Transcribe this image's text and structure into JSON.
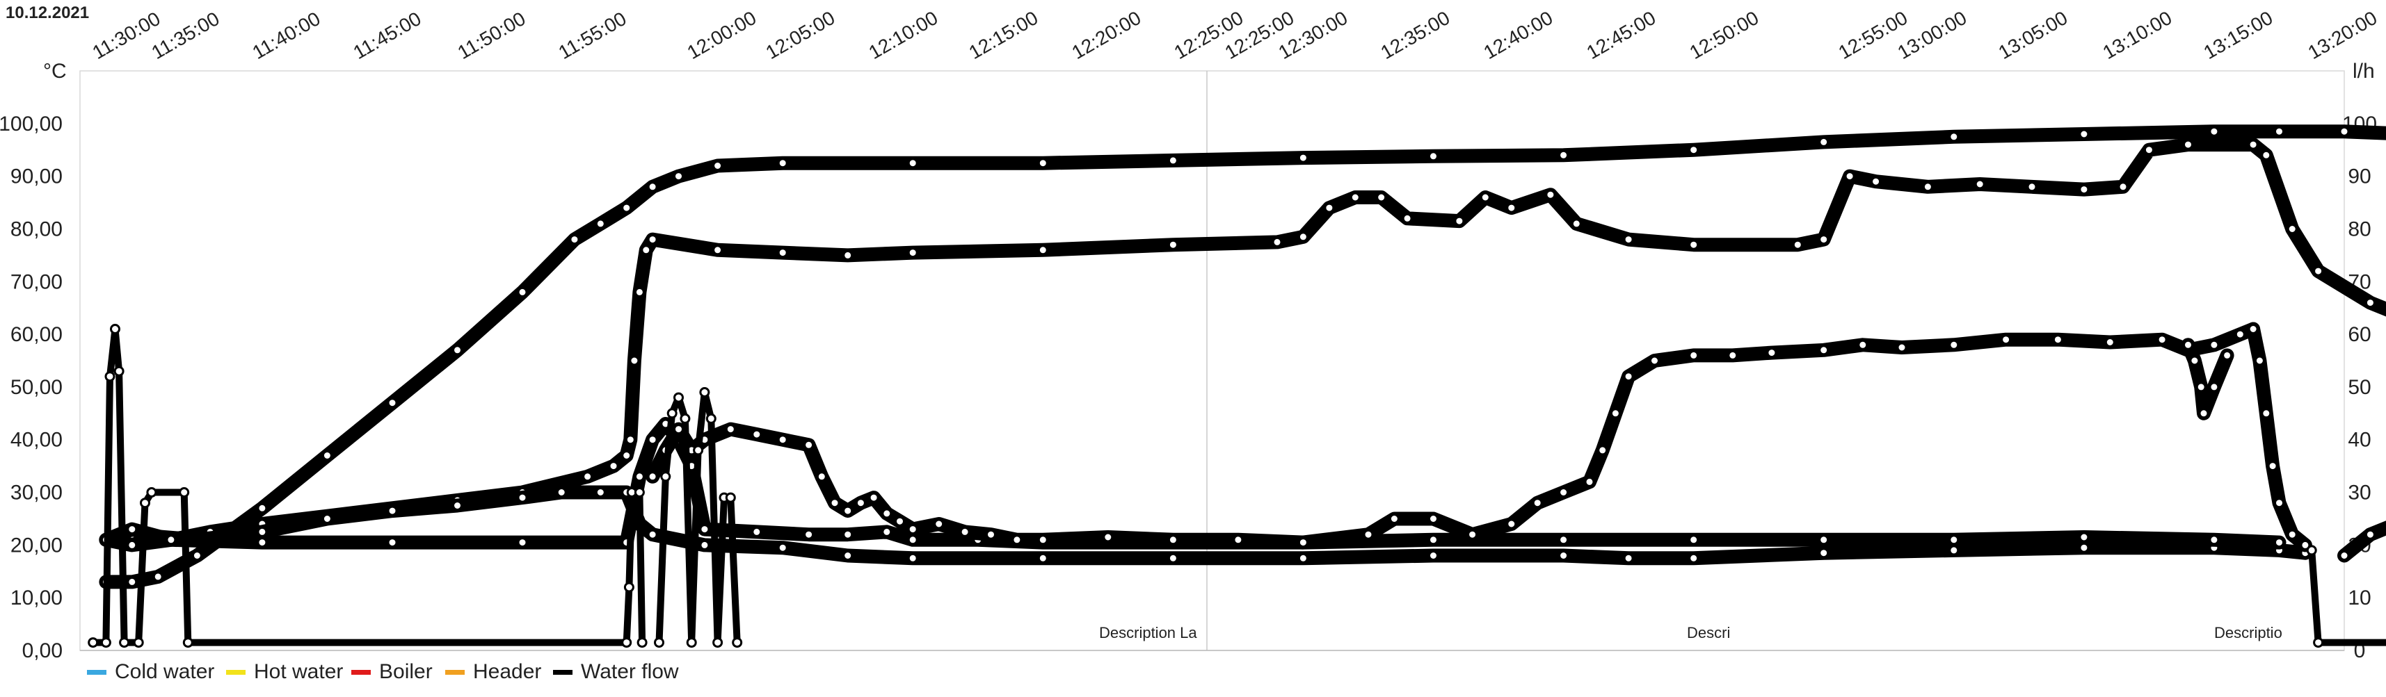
{
  "date_label": "10.12.2021",
  "chart_data": {
    "type": "line",
    "title": "",
    "left_unit": "°C",
    "right_unit": "l/h",
    "ylim": [
      0,
      110
    ],
    "y2lim": [
      0,
      110
    ],
    "x_ticks": [
      "11:30:00",
      "11:35:00",
      "11:40:00",
      "11:45:00",
      "11:50:00",
      "11:55:00",
      "12:00:00",
      "12:05:00",
      "12:10:00",
      "12:15:00",
      "12:20:00",
      "12:25:00",
      "12:25:00",
      "12:30:00",
      "12:35:00",
      "12:40:00",
      "12:45:00",
      "12:50:00",
      "12:55:00",
      "13:00:00",
      "13:05:00",
      "13:10:00",
      "13:15:00",
      "13:20:00"
    ],
    "y_ticks_left": [
      "0,00",
      "10,00",
      "20,00",
      "30,00",
      "40,00",
      "50,00",
      "60,00",
      "70,00",
      "80,00",
      "90,00",
      "100,00"
    ],
    "y_ticks_right": [
      "0",
      "10",
      "20",
      "30",
      "40",
      "50",
      "60",
      "70",
      "80",
      "90",
      "100"
    ],
    "x_domain_minutes": [
      26,
      200
    ],
    "annotations": [
      "Description La",
      "Descri",
      "Descriptio"
    ],
    "legend": [
      {
        "name": "Cold water",
        "color": "#3aa8e0"
      },
      {
        "name": "Hot water",
        "color": "#f2e21b"
      },
      {
        "name": "Boiler",
        "color": "#e01b1b"
      },
      {
        "name": "Header",
        "color": "#f0a020"
      },
      {
        "name": "Water flow",
        "color": "#000000"
      }
    ],
    "series": [
      {
        "key": "header_main",
        "color": "#000000",
        "points": [
          [
            28,
            21
          ],
          [
            30,
            20
          ],
          [
            33,
            21
          ],
          [
            36,
            22.5
          ],
          [
            40,
            24
          ],
          [
            45,
            25.5
          ],
          [
            50,
            27
          ],
          [
            55,
            28.5
          ],
          [
            60,
            30
          ],
          [
            65,
            33
          ],
          [
            67,
            35
          ],
          [
            68,
            37
          ],
          [
            68.3,
            40
          ],
          [
            68.6,
            55
          ],
          [
            69,
            68
          ],
          [
            69.5,
            76
          ],
          [
            70,
            78
          ],
          [
            75,
            76
          ],
          [
            80,
            75.5
          ],
          [
            85,
            75
          ],
          [
            90,
            75.5
          ],
          [
            100,
            76
          ],
          [
            110,
            77
          ],
          [
            118,
            77.5
          ],
          [
            120,
            78.5
          ],
          [
            122,
            84
          ],
          [
            124,
            86
          ],
          [
            126,
            86
          ],
          [
            128,
            82
          ],
          [
            132,
            81.5
          ],
          [
            134,
            86
          ],
          [
            136,
            84
          ],
          [
            139,
            86.5
          ],
          [
            141,
            81
          ],
          [
            145,
            78
          ],
          [
            150,
            77
          ],
          [
            158,
            77
          ],
          [
            160,
            78
          ],
          [
            162,
            90
          ],
          [
            164,
            89
          ],
          [
            168,
            88
          ],
          [
            172,
            88.5
          ],
          [
            176,
            88
          ],
          [
            180,
            87.5
          ],
          [
            183,
            88
          ],
          [
            185,
            95
          ],
          [
            188,
            96
          ],
          [
            193,
            96
          ],
          [
            194,
            94
          ],
          [
            196,
            80
          ],
          [
            198,
            72
          ],
          [
            202,
            66
          ],
          [
            206,
            62
          ],
          [
            208,
            60
          ]
        ]
      },
      {
        "key": "water_flow_main",
        "color": "#000000",
        "points": [
          [
            28,
            13
          ],
          [
            30,
            13
          ],
          [
            32,
            14
          ],
          [
            35,
            18
          ],
          [
            40,
            27
          ],
          [
            45,
            37
          ],
          [
            50,
            47
          ],
          [
            55,
            57
          ],
          [
            60,
            68
          ],
          [
            64,
            78
          ],
          [
            66,
            81
          ],
          [
            68,
            84
          ],
          [
            70,
            88
          ],
          [
            72,
            90
          ],
          [
            75,
            92
          ],
          [
            80,
            92.5
          ],
          [
            90,
            92.5
          ],
          [
            100,
            92.5
          ],
          [
            110,
            93
          ],
          [
            120,
            93.5
          ],
          [
            130,
            93.8
          ],
          [
            140,
            94
          ],
          [
            150,
            95
          ],
          [
            160,
            96.5
          ],
          [
            170,
            97.5
          ],
          [
            180,
            98
          ],
          [
            190,
            98.5
          ],
          [
            195,
            98.5
          ],
          [
            200,
            98.5
          ],
          [
            205,
            98
          ],
          [
            208,
            97.5
          ]
        ]
      },
      {
        "key": "cold_water",
        "color": "#000000",
        "points": [
          [
            28,
            21
          ],
          [
            30,
            22
          ],
          [
            35,
            21
          ],
          [
            40,
            22.5
          ],
          [
            45,
            25
          ],
          [
            50,
            26.5
          ],
          [
            55,
            27.5
          ],
          [
            60,
            29
          ],
          [
            63,
            30
          ],
          [
            66,
            30
          ],
          [
            68,
            30
          ],
          [
            68.5,
            27
          ],
          [
            69,
            24
          ],
          [
            70,
            22
          ],
          [
            74,
            20
          ],
          [
            80,
            19.5
          ],
          [
            85,
            18
          ],
          [
            90,
            17.5
          ],
          [
            100,
            17.5
          ],
          [
            110,
            17.5
          ],
          [
            120,
            17.5
          ],
          [
            130,
            18
          ],
          [
            140,
            18
          ],
          [
            145,
            17.5
          ],
          [
            150,
            17.5
          ],
          [
            160,
            18.5
          ],
          [
            170,
            19
          ],
          [
            180,
            19.5
          ],
          [
            190,
            19.5
          ],
          [
            195,
            19
          ],
          [
            197,
            18.5
          ]
        ]
      },
      {
        "key": "boiler",
        "color": "#000000",
        "points": [
          [
            28,
            21
          ],
          [
            30,
            23
          ],
          [
            33,
            21
          ],
          [
            40,
            20.5
          ],
          [
            50,
            20.5
          ],
          [
            60,
            20.5
          ],
          [
            68,
            20.5
          ],
          [
            69,
            33
          ],
          [
            70,
            40
          ],
          [
            71,
            43
          ],
          [
            72,
            40
          ],
          [
            73,
            35
          ],
          [
            74,
            23
          ],
          [
            78,
            22.5
          ],
          [
            82,
            22
          ],
          [
            85,
            22
          ],
          [
            88,
            22.5
          ],
          [
            90,
            21
          ],
          [
            95,
            21
          ],
          [
            100,
            20.5
          ],
          [
            110,
            20.5
          ],
          [
            120,
            20.5
          ],
          [
            130,
            21
          ],
          [
            140,
            21
          ],
          [
            150,
            21
          ],
          [
            160,
            21
          ],
          [
            170,
            21
          ],
          [
            180,
            21.5
          ],
          [
            190,
            21
          ],
          [
            195,
            20.5
          ]
        ]
      },
      {
        "key": "hot_water",
        "color": "#000000",
        "points": [
          [
            70,
            33
          ],
          [
            71,
            38
          ],
          [
            72,
            42
          ],
          [
            73,
            38
          ],
          [
            74,
            40
          ],
          [
            76,
            42
          ],
          [
            78,
            41
          ],
          [
            80,
            40
          ],
          [
            82,
            39
          ],
          [
            83,
            33
          ],
          [
            84,
            28
          ],
          [
            85,
            26.5
          ],
          [
            86,
            28
          ],
          [
            87,
            29
          ],
          [
            88,
            26
          ],
          [
            89,
            24.5
          ],
          [
            90,
            23
          ],
          [
            92,
            24
          ],
          [
            94,
            22.5
          ],
          [
            96,
            22
          ],
          [
            98,
            21
          ],
          [
            100,
            21
          ],
          [
            105,
            21.5
          ],
          [
            110,
            21
          ],
          [
            115,
            21
          ],
          [
            120,
            20.5
          ],
          [
            125,
            22
          ],
          [
            127,
            25
          ],
          [
            130,
            25
          ],
          [
            133,
            22
          ],
          [
            136,
            24
          ],
          [
            138,
            28
          ],
          [
            140,
            30
          ],
          [
            142,
            32
          ],
          [
            143,
            38
          ],
          [
            144,
            45
          ],
          [
            145,
            52
          ],
          [
            147,
            55
          ],
          [
            150,
            56
          ],
          [
            153,
            56
          ],
          [
            156,
            56.5
          ],
          [
            160,
            57
          ],
          [
            163,
            58
          ],
          [
            166,
            57.5
          ],
          [
            170,
            58
          ],
          [
            174,
            59
          ],
          [
            178,
            59
          ],
          [
            182,
            58.5
          ],
          [
            186,
            59
          ],
          [
            188,
            57
          ],
          [
            190,
            58
          ],
          [
            192,
            60
          ],
          [
            193,
            61
          ]
        ]
      },
      {
        "key": "hot_dip",
        "color": "#000000",
        "points": [
          [
            188,
            58
          ],
          [
            188.5,
            55
          ],
          [
            189,
            50
          ],
          [
            189.2,
            45
          ],
          [
            190,
            50
          ],
          [
            191,
            56
          ]
        ]
      },
      {
        "key": "hot_drop",
        "color": "#000000",
        "points": [
          [
            193,
            61
          ],
          [
            193.5,
            55
          ],
          [
            194,
            45
          ],
          [
            194.5,
            35
          ],
          [
            195,
            28
          ],
          [
            196,
            22
          ],
          [
            197,
            20
          ]
        ]
      },
      {
        "key": "flow_end",
        "color": "#000000",
        "points": [
          [
            200,
            18
          ],
          [
            202,
            22
          ],
          [
            204,
            24
          ],
          [
            206,
            25.5
          ],
          [
            208,
            27
          ]
        ]
      }
    ],
    "square_waves": [
      {
        "key": "spike_a",
        "color": "#000000",
        "points": [
          [
            27,
            1.5
          ],
          [
            28,
            1.5
          ],
          [
            28.3,
            52
          ],
          [
            28.7,
            61
          ],
          [
            29,
            53
          ],
          [
            29.4,
            1.5
          ],
          [
            30.5,
            1.5
          ],
          [
            31,
            28
          ],
          [
            31.5,
            30
          ],
          [
            34,
            30
          ],
          [
            34.3,
            1.5
          ],
          [
            68,
            1.5
          ],
          [
            68.2,
            12
          ],
          [
            68.4,
            30
          ],
          [
            69,
            30
          ],
          [
            69.2,
            1.5
          ]
        ]
      },
      {
        "key": "spike_b",
        "color": "#000000",
        "points": [
          [
            70.5,
            1.5
          ],
          [
            71,
            33
          ],
          [
            71.5,
            45
          ],
          [
            72,
            48
          ],
          [
            72.5,
            44
          ],
          [
            73,
            1.5
          ],
          [
            73.5,
            38
          ],
          [
            74,
            49
          ],
          [
            74.5,
            44
          ],
          [
            75,
            1.5
          ],
          [
            75.5,
            29
          ],
          [
            76,
            29
          ],
          [
            76.5,
            1.5
          ]
        ]
      },
      {
        "key": "flow_zero",
        "color": "#000000",
        "points": [
          [
            197.5,
            19
          ],
          [
            198,
            1.5
          ],
          [
            208,
            1.5
          ]
        ]
      }
    ]
  }
}
